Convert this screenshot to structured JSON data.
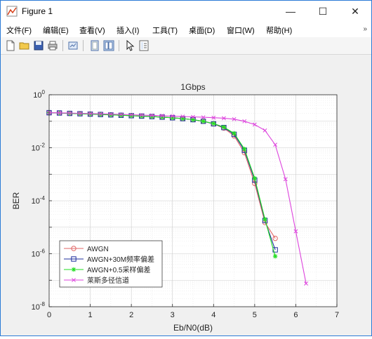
{
  "window": {
    "title": "Figure 1",
    "minimize_glyph": "—",
    "maximize_glyph": "☐",
    "close_glyph": "✕"
  },
  "menubar": {
    "items": [
      "文件(F)",
      "编辑(E)",
      "查看(V)",
      "插入(I)",
      "工具(T)",
      "桌面(D)",
      "窗口(W)",
      "帮助(H)"
    ],
    "overflow_glyph": "»"
  },
  "toolbar": {
    "icons": [
      "new-figure-icon",
      "open-file-icon",
      "save-icon",
      "print-icon",
      "link-plot-icon",
      "hide-plot-tools-icon",
      "show-plot-tools-icon",
      "edit-plot-icon",
      "property-inspector-icon"
    ]
  },
  "colors": {
    "awgn": "#e06666",
    "awgn_30m": "#1f2f9e",
    "awgn_05": "#22dd22",
    "rician": "#dd44dd",
    "grid": "#cccccc"
  },
  "chart_data": {
    "type": "line",
    "title": "1Gbps",
    "xlabel": "Eb/N0(dB)",
    "ylabel": "BER",
    "xlim": [
      0,
      7
    ],
    "ylim_log10": [
      -8,
      0
    ],
    "y_scale": "log",
    "x_ticks": [
      "0",
      "1",
      "2",
      "3",
      "4",
      "5",
      "6",
      "7"
    ],
    "y_tick_exponents": [
      "0",
      "-2",
      "-4",
      "-6",
      "-8"
    ],
    "y_tick_base": "10",
    "grid": true,
    "minor_grid": true,
    "legend_placement": "bottom-left",
    "series": [
      {
        "name": "AWGN",
        "color_key": "awgn",
        "marker": "circle",
        "x": [
          0,
          0.25,
          0.5,
          0.75,
          1,
          1.25,
          1.5,
          1.75,
          2,
          2.25,
          2.5,
          2.75,
          3,
          3.25,
          3.5,
          3.75,
          4,
          4.25,
          4.5,
          4.75,
          5,
          5.25,
          5.5
        ],
        "y": [
          0.21,
          0.205,
          0.198,
          0.192,
          0.186,
          0.18,
          0.174,
          0.168,
          0.162,
          0.156,
          0.15,
          0.143,
          0.135,
          0.126,
          0.115,
          0.1,
          0.08,
          0.055,
          0.028,
          0.0065,
          0.00045,
          1.5e-05,
          3.8e-06
        ]
      },
      {
        "name": "AWGN+30M频率偏差",
        "color_key": "awgn_30m",
        "marker": "square",
        "x": [
          0,
          0.25,
          0.5,
          0.75,
          1,
          1.25,
          1.5,
          1.75,
          2,
          2.25,
          2.5,
          2.75,
          3,
          3.25,
          3.5,
          3.75,
          4,
          4.25,
          4.5,
          4.75,
          5,
          5.25,
          5.5
        ],
        "y": [
          0.21,
          0.205,
          0.198,
          0.192,
          0.186,
          0.18,
          0.174,
          0.168,
          0.162,
          0.156,
          0.15,
          0.143,
          0.135,
          0.126,
          0.115,
          0.1,
          0.08,
          0.058,
          0.032,
          0.008,
          0.0006,
          1.8e-05,
          1.4e-06
        ]
      },
      {
        "name": "AWGN+0.5采样偏差",
        "color_key": "awgn_05",
        "marker": "star",
        "x": [
          0,
          0.25,
          0.5,
          0.75,
          1,
          1.25,
          1.5,
          1.75,
          2,
          2.25,
          2.5,
          2.75,
          3,
          3.25,
          3.5,
          3.75,
          4,
          4.25,
          4.5,
          4.75,
          5,
          5.25,
          5.5
        ],
        "y": [
          0.21,
          0.205,
          0.198,
          0.192,
          0.186,
          0.18,
          0.174,
          0.168,
          0.162,
          0.156,
          0.15,
          0.143,
          0.135,
          0.126,
          0.115,
          0.1,
          0.082,
          0.06,
          0.035,
          0.009,
          0.0007,
          2e-05,
          8e-07
        ]
      },
      {
        "name": "莱斯多径信道",
        "color_key": "rician",
        "marker": "x",
        "x": [
          0,
          0.25,
          0.5,
          0.75,
          1,
          1.25,
          1.5,
          1.75,
          2,
          2.25,
          2.5,
          2.75,
          3,
          3.25,
          3.5,
          3.75,
          4,
          4.25,
          4.5,
          4.75,
          5,
          5.25,
          5.5,
          5.75,
          6,
          6.25
        ],
        "y": [
          0.21,
          0.207,
          0.203,
          0.199,
          0.195,
          0.19,
          0.186,
          0.181,
          0.176,
          0.171,
          0.166,
          0.161,
          0.156,
          0.151,
          0.146,
          0.141,
          0.136,
          0.13,
          0.12,
          0.1,
          0.075,
          0.045,
          0.013,
          0.00065,
          7e-06,
          7.5e-08
        ]
      }
    ]
  }
}
